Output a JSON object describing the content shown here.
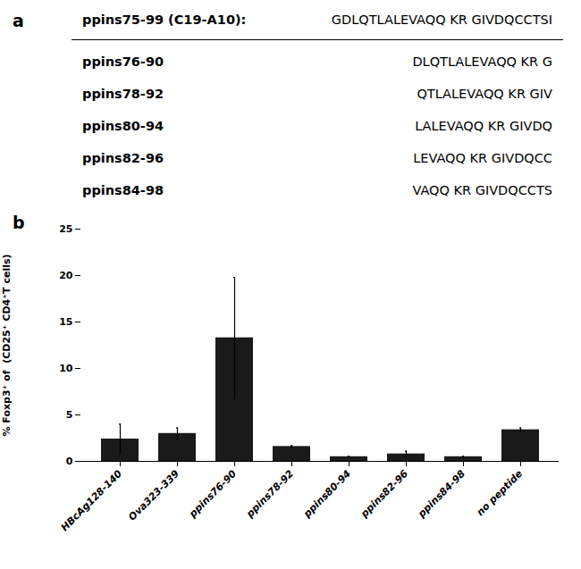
{
  "chart_data": [
    {
      "type": "table",
      "panel_label": "a",
      "title": "ppins75-99 (C19-A10):",
      "sequence": "GDLQTLALEVAQQ KR GIVDQCCTSI",
      "rows": [
        {
          "label": "ppins76-90",
          "seq": "DLQTLALEVAQQ KR G"
        },
        {
          "label": "ppins78-92",
          "seq": "QTLALEVAQQ KR GIV"
        },
        {
          "label": "ppins80-94",
          "seq": "LALEVAQQ KR GIVDQ"
        },
        {
          "label": "ppins82-96",
          "seq": "LEVAQQ KR GIVDQCC"
        },
        {
          "label": "ppins84-98",
          "seq": "VAQQ KR GIVDQCCTS"
        }
      ]
    },
    {
      "type": "bar",
      "panel_label": "b",
      "categories": [
        "HBcAg128-140",
        "Ova323-339",
        "ppins76-90",
        "ppins78-92",
        "ppins80-94",
        "ppins82-96",
        "ppins84-98",
        "no peptide"
      ],
      "values": [
        2.4,
        3.0,
        13.3,
        1.6,
        0.5,
        0.8,
        0.5,
        3.4
      ],
      "errors": [
        1.6,
        0.6,
        6.5,
        0.1,
        0.05,
        0.3,
        0.05,
        0.2
      ],
      "color": "#1a1a1a",
      "ylabel": "% Foxp3⁺ of  (CD25⁺ CD4⁺T cells)",
      "ylim": [
        0,
        25
      ],
      "yticks": [
        0,
        5,
        10,
        15,
        20,
        25
      ],
      "grid": false
    }
  ]
}
